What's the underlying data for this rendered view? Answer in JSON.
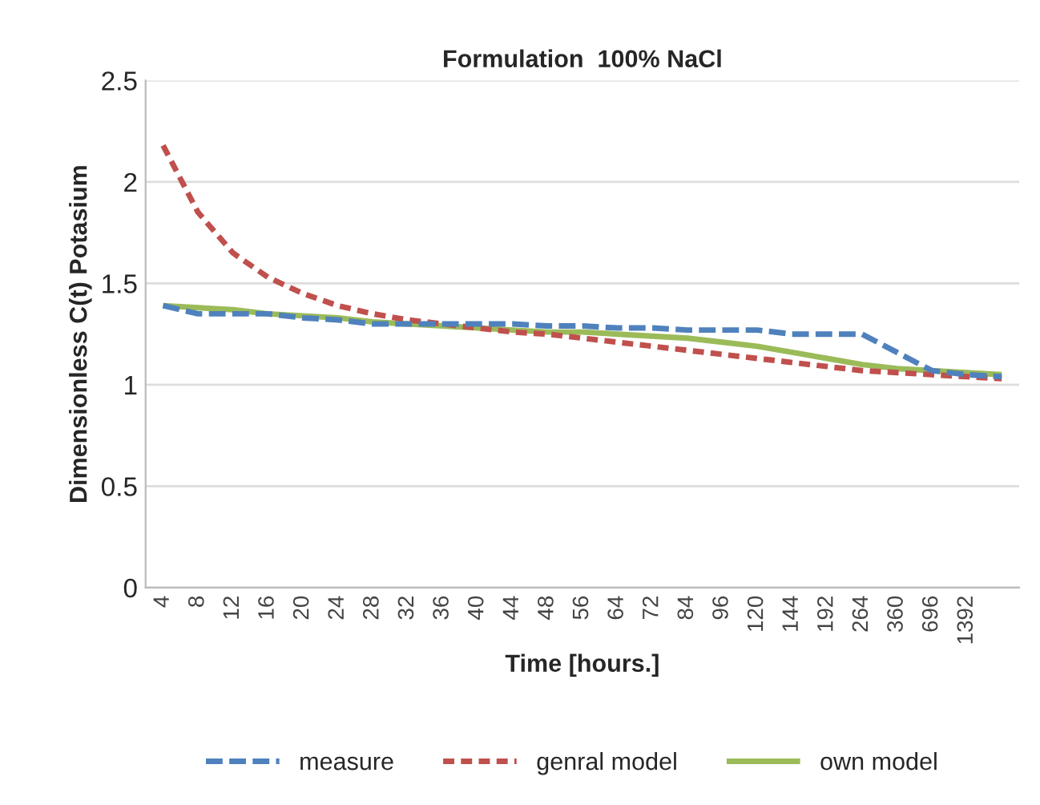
{
  "chart_data": {
    "type": "line",
    "title": "Formulation  100% NaCl",
    "xlabel": "Time [hours.]",
    "ylabel": "Dimensionless C(t) Potasium",
    "categories": [
      "4",
      "8",
      "12",
      "16",
      "20",
      "24",
      "28",
      "32",
      "36",
      "40",
      "44",
      "48",
      "56",
      "64",
      "72",
      "84",
      "96",
      "120",
      "144",
      "192",
      "264",
      "360",
      "696",
      "1392",
      null
    ],
    "series": [
      {
        "name": "measure",
        "color": "#4f81bd",
        "line_style": "dashed",
        "values": [
          1.39,
          1.35,
          1.35,
          1.35,
          1.33,
          1.32,
          1.3,
          1.3,
          1.3,
          1.3,
          1.3,
          1.29,
          1.29,
          1.28,
          1.28,
          1.27,
          1.27,
          1.27,
          1.25,
          1.25,
          1.25,
          1.16,
          1.07,
          1.05,
          1.04
        ]
      },
      {
        "name": "genral model",
        "color": "#c0504d",
        "line_style": "dotted",
        "values": [
          2.18,
          1.85,
          1.65,
          1.53,
          1.45,
          1.39,
          1.35,
          1.32,
          1.3,
          1.28,
          1.26,
          1.25,
          1.23,
          1.21,
          1.19,
          1.17,
          1.15,
          1.13,
          1.11,
          1.09,
          1.07,
          1.06,
          1.05,
          1.04,
          1.03
        ]
      },
      {
        "name": "own model",
        "color": "#9bbb59",
        "line_style": "solid",
        "values": [
          1.39,
          1.38,
          1.37,
          1.35,
          1.34,
          1.33,
          1.31,
          1.3,
          1.29,
          1.28,
          1.27,
          1.26,
          1.26,
          1.25,
          1.24,
          1.23,
          1.21,
          1.19,
          1.16,
          1.13,
          1.1,
          1.08,
          1.07,
          1.06,
          1.05
        ]
      }
    ],
    "ylim": [
      0,
      2.5
    ],
    "yticks": [
      0,
      0.5,
      1,
      1.5,
      2,
      2.5
    ],
    "grid": "y",
    "legend": "bottom",
    "marker": "none"
  }
}
